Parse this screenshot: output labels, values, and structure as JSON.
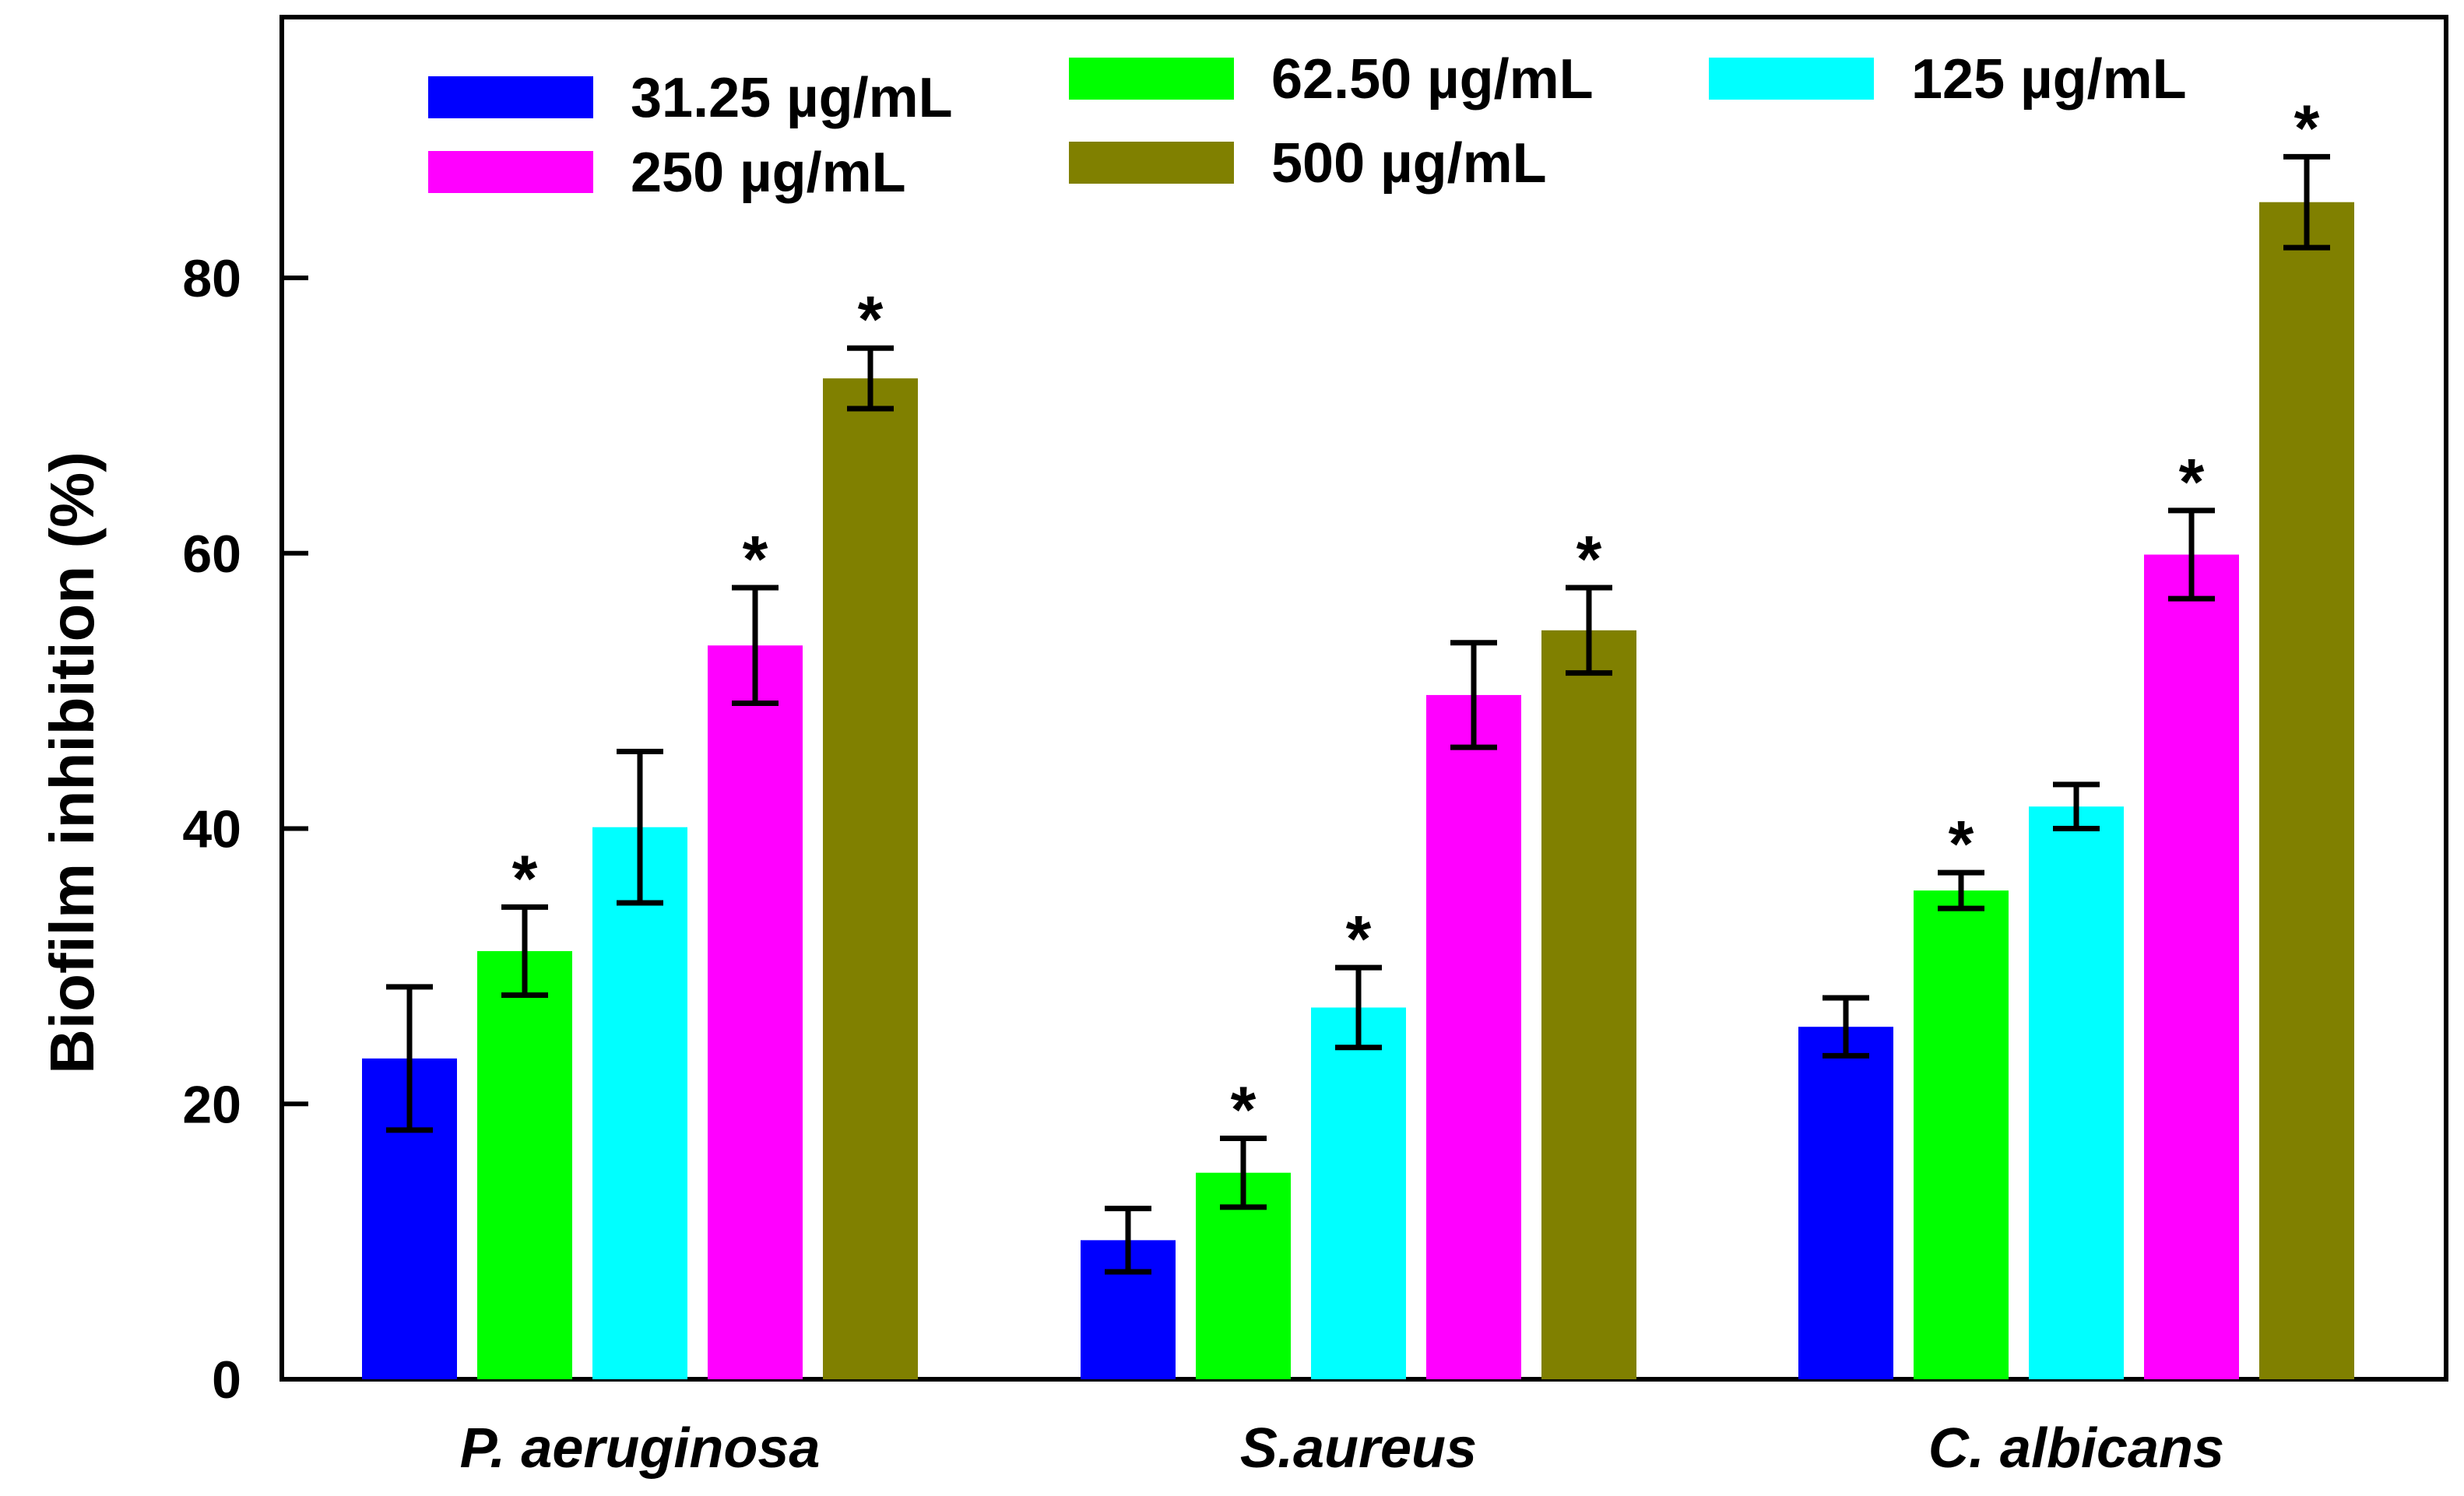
{
  "chart_data": {
    "type": "bar",
    "ylabel": "Biofilm inhibition (%)",
    "xlabel": "",
    "title": "",
    "ylim": [
      0,
      100
    ],
    "yticks": [
      0,
      20,
      40,
      60,
      80
    ],
    "categories": [
      "P. aeruginosa",
      "S.aureus",
      "C. albicans"
    ],
    "series": [
      {
        "name": "31.25 µg/mL",
        "color": "#0000ff",
        "values": [
          23.3,
          10.1,
          25.6
        ],
        "errors": [
          5.2,
          2.3,
          2.1
        ],
        "significant": [
          false,
          false,
          false
        ]
      },
      {
        "name": "62.50 µg/mL",
        "color": "#00ff00",
        "values": [
          31.1,
          15.0,
          35.5
        ],
        "errors": [
          3.2,
          2.5,
          1.3
        ],
        "significant": [
          true,
          true,
          true
        ]
      },
      {
        "name": "125 µg/mL",
        "color": "#00ffff",
        "values": [
          40.1,
          27.0,
          41.6
        ],
        "errors": [
          5.5,
          2.9,
          1.6
        ],
        "significant": [
          false,
          true,
          false
        ]
      },
      {
        "name": "250 µg/mL",
        "color": "#ff00ff",
        "values": [
          53.3,
          49.7,
          59.9
        ],
        "errors": [
          4.2,
          3.8,
          3.2
        ],
        "significant": [
          true,
          false,
          true
        ]
      },
      {
        "name": "500 µg/mL",
        "color": "#808000",
        "values": [
          72.7,
          54.4,
          85.5
        ],
        "errors": [
          2.2,
          3.1,
          3.3
        ],
        "significant": [
          true,
          true,
          true
        ]
      }
    ],
    "significance_marker": "*",
    "grid": false,
    "legend_position": "top"
  }
}
